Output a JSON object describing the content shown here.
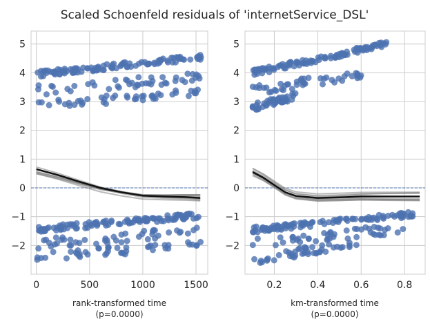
{
  "figure": {
    "title": "Scaled Schoenfeld residuals of 'internetService_DSL'"
  },
  "chart_data": [
    {
      "type": "scatter",
      "xlabel": "rank-transformed time",
      "xlabel_sub": "(p=0.0000)",
      "xlim": [
        -50,
        1610
      ],
      "ylim": [
        -3.0,
        5.45
      ],
      "xticks": [
        0,
        500,
        1000,
        1500
      ],
      "xtick_labels": [
        "0",
        "500",
        "1000",
        "1500"
      ],
      "yticks": [
        -2,
        -1,
        0,
        1,
        2,
        3,
        4,
        5
      ],
      "ytick_labels": [
        "−2",
        "−1",
        "0",
        "1",
        "2",
        "3",
        "4",
        "5"
      ],
      "grid": true,
      "reference_line_y": 0,
      "point_color": "#4c72b0",
      "clusters": [
        {
          "x0": 0,
          "x1": 1550,
          "y0": 3.95,
          "y1": 4.55,
          "spread": 0.1
        },
        {
          "x0": 0,
          "x1": 1550,
          "y0": 3.4,
          "y1": 3.85,
          "spread": 0.18
        },
        {
          "x0": 0,
          "x1": 1550,
          "y0": 2.9,
          "y1": 3.3,
          "spread": 0.15
        },
        {
          "x0": 0,
          "x1": 1550,
          "y0": -1.45,
          "y1": -0.95,
          "spread": 0.1
        },
        {
          "x0": 0,
          "x1": 1550,
          "y0": -1.95,
          "y1": -1.5,
          "spread": 0.18
        },
        {
          "x0": 0,
          "x1": 1550,
          "y0": -2.4,
          "y1": -1.95,
          "spread": 0.15
        }
      ],
      "lowess_mean": {
        "x": [
          0,
          200,
          400,
          600,
          800,
          1000,
          1200,
          1400,
          1540
        ],
        "y": [
          0.65,
          0.45,
          0.22,
          0.0,
          -0.15,
          -0.27,
          -0.3,
          -0.32,
          -0.35
        ]
      },
      "bootstrap_lines": 9
    },
    {
      "type": "scatter",
      "xlabel": "km-transformed time",
      "xlabel_sub": "(p=0.0000)",
      "xlim": [
        0.065,
        0.895
      ],
      "ylim": [
        -3.0,
        5.45
      ],
      "xticks": [
        0.2,
        0.4,
        0.6,
        0.8
      ],
      "xtick_labels": [
        "0.2",
        "0.4",
        "0.6",
        "0.8"
      ],
      "yticks": [
        -2,
        -1,
        0,
        1,
        2,
        3,
        4,
        5
      ],
      "ytick_labels": [
        "−2",
        "−1",
        "0",
        "1",
        "2",
        "3",
        "4",
        "5"
      ],
      "grid": true,
      "reference_line_y": 0,
      "point_color": "#4c72b0",
      "clusters": [
        {
          "x0": 0.1,
          "x1": 0.72,
          "y0": 4.0,
          "y1": 5.0,
          "spread": 0.1
        },
        {
          "x0": 0.1,
          "x1": 0.6,
          "y0": 3.4,
          "y1": 3.9,
          "spread": 0.18
        },
        {
          "x0": 0.1,
          "x1": 0.3,
          "y0": 2.8,
          "y1": 3.2,
          "spread": 0.12
        },
        {
          "x0": 0.1,
          "x1": 0.86,
          "y0": -1.45,
          "y1": -0.9,
          "spread": 0.1
        },
        {
          "x0": 0.1,
          "x1": 0.8,
          "y0": -1.95,
          "y1": -1.4,
          "spread": 0.18
        },
        {
          "x0": 0.1,
          "x1": 0.6,
          "y0": -2.5,
          "y1": -1.9,
          "spread": 0.15
        }
      ],
      "lowess_mean": {
        "x": [
          0.1,
          0.15,
          0.2,
          0.25,
          0.3,
          0.4,
          0.5,
          0.6,
          0.7,
          0.87
        ],
        "y": [
          0.55,
          0.35,
          0.1,
          -0.15,
          -0.28,
          -0.35,
          -0.33,
          -0.3,
          -0.3,
          -0.3
        ]
      },
      "bootstrap_lines": 9
    }
  ]
}
